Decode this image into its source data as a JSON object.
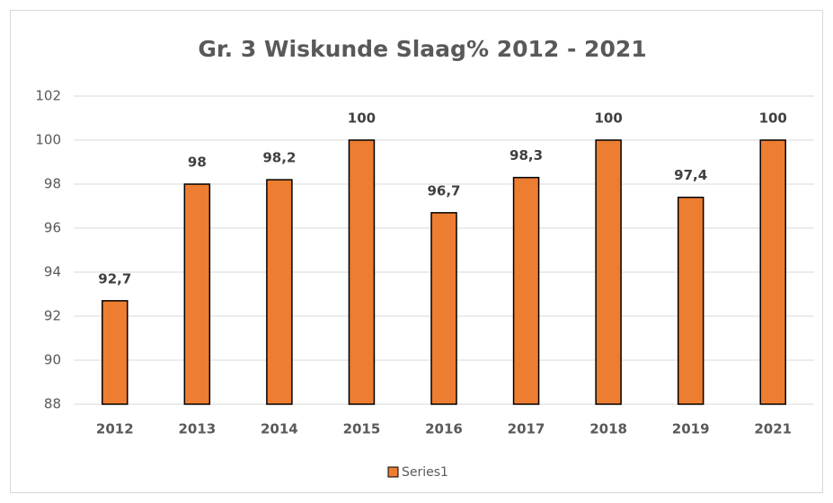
{
  "chart_data": {
    "type": "bar",
    "title": "Gr. 3 Wiskunde Slaag% 2012 - 2021",
    "categories": [
      "2012",
      "2013",
      "2014",
      "2015",
      "2016",
      "2017",
      "2018",
      "2019",
      "2021"
    ],
    "series": [
      {
        "name": "Series1",
        "color": "#ed7d31",
        "values": [
          92.7,
          98,
          98.2,
          100,
          96.7,
          98.3,
          100,
          97.4,
          100
        ],
        "value_labels": [
          "92,7",
          "98",
          "98,2",
          "100",
          "96,7",
          "98,3",
          "100",
          "97,4",
          "100"
        ]
      }
    ],
    "ylim": [
      88,
      102
    ],
    "yticks": [
      88,
      90,
      92,
      94,
      96,
      98,
      100,
      102
    ],
    "grid": true,
    "legend": "bottom"
  }
}
